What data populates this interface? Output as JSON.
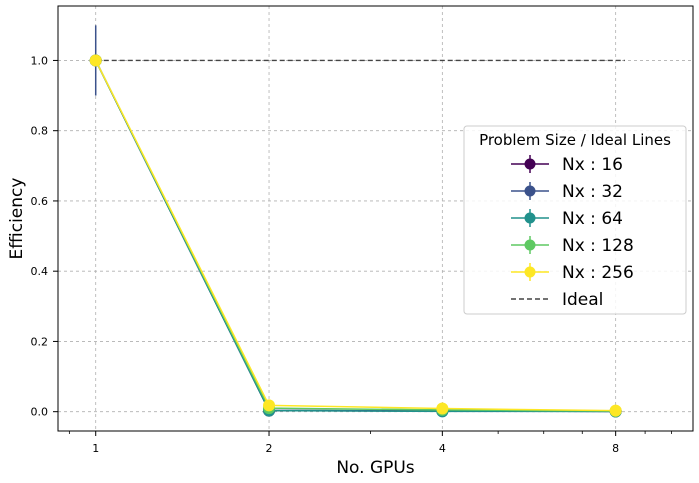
{
  "chart_data": {
    "type": "line",
    "title": "",
    "xlabel": "No. GPUs",
    "ylabel": "Efficiency",
    "x_scale": "log2",
    "x": [
      1,
      2,
      4,
      8
    ],
    "x_ticks": [
      1,
      2,
      4,
      8
    ],
    "x_tick_labels": [
      "1",
      "2",
      "4",
      "8"
    ],
    "xlim": [
      0.86,
      10.9
    ],
    "y_ticks": [
      0.0,
      0.2,
      0.4,
      0.6,
      0.8,
      1.0
    ],
    "y_tick_labels": [
      "0.0",
      "0.2",
      "0.4",
      "0.6",
      "0.8",
      "1.0"
    ],
    "ylim": [
      -0.055,
      1.155
    ],
    "grid": true,
    "legend": {
      "title": "Problem Size / Ideal Lines",
      "placement": "center-right"
    },
    "series": [
      {
        "name": "Nx : 16",
        "color": "#440154",
        "values": [
          1.0,
          0.003,
          0.002,
          0.001
        ],
        "yerr": [
          0.0,
          0.0,
          0.0,
          0.0
        ]
      },
      {
        "name": "Nx : 32",
        "color": "#3b528b",
        "values": [
          1.0,
          0.004,
          0.002,
          0.001
        ],
        "yerr": [
          0.1,
          0.0,
          0.0,
          0.0
        ]
      },
      {
        "name": "Nx : 64",
        "color": "#21918c",
        "values": [
          1.0,
          0.003,
          0.001,
          0.0005
        ],
        "yerr": [
          0.0,
          0.0,
          0.0,
          0.0
        ]
      },
      {
        "name": "Nx : 128",
        "color": "#5ec962",
        "values": [
          1.0,
          0.01,
          0.005,
          0.002
        ],
        "yerr": [
          0.0,
          0.0,
          0.0,
          0.0
        ]
      },
      {
        "name": "Nx : 256",
        "color": "#fde725",
        "values": [
          1.0,
          0.018,
          0.009,
          0.003
        ],
        "yerr": [
          0.0,
          0.0,
          0.0,
          0.0
        ]
      }
    ],
    "ideal": {
      "name": "Ideal",
      "color": "#444444",
      "value": 1.0,
      "x_range": [
        1,
        8.3
      ]
    }
  }
}
